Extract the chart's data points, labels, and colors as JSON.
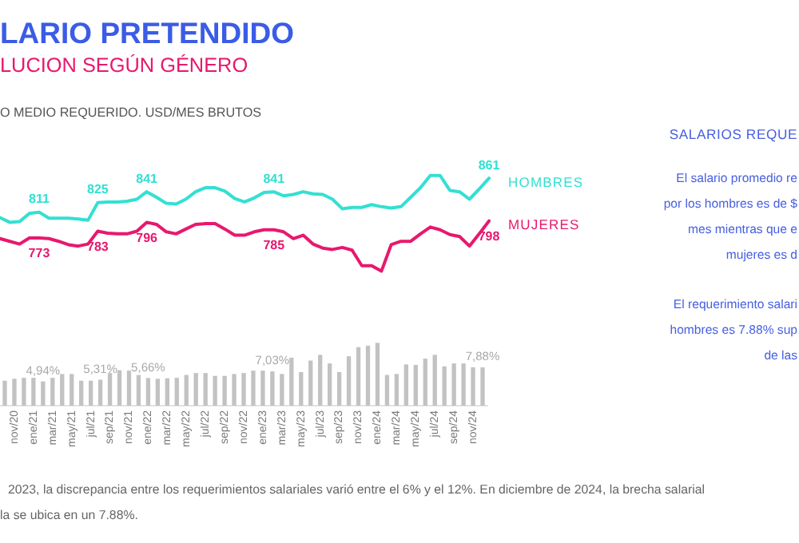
{
  "chart_data": [
    {
      "type": "line",
      "title": "LARIO PRETENDIDO",
      "subtitle": "LUCION SEGÚN GÉNERO",
      "ylabel": "O MEDIO REQUERIDO. USD/MES BRUTOS",
      "categories": [
        null,
        null,
        null,
        null,
        null,
        null,
        null,
        null,
        null,
        null,
        null,
        null,
        null,
        null,
        null,
        null,
        null,
        null,
        null,
        null,
        null,
        null,
        null,
        null,
        null,
        null,
        null,
        null,
        null,
        null,
        null,
        null,
        null,
        null,
        null,
        null,
        null,
        null,
        null,
        null,
        null,
        null,
        null,
        null,
        null,
        null,
        null,
        null,
        null,
        null,
        null
      ],
      "series": [
        {
          "name": "HOMBRES",
          "color": "#33e0d2",
          "values": [
            803,
            796,
            797,
            809,
            811,
            802,
            802,
            802,
            801,
            799,
            825,
            826,
            826,
            827,
            830,
            841,
            833,
            824,
            823,
            830,
            841,
            847,
            847,
            842,
            831,
            826,
            832,
            840,
            841,
            835,
            837,
            841,
            838,
            837,
            830,
            816,
            818,
            818,
            822,
            819,
            817,
            819,
            833,
            847,
            865,
            865,
            843,
            841,
            830,
            845,
            861
          ],
          "value_labels": [
            null,
            null,
            null,
            null,
            "811",
            null,
            null,
            null,
            null,
            null,
            "825",
            null,
            null,
            null,
            null,
            "841",
            null,
            null,
            null,
            null,
            null,
            null,
            null,
            null,
            null,
            null,
            null,
            null,
            "841",
            null,
            null,
            null,
            null,
            null,
            null,
            null,
            null,
            null,
            null,
            null,
            null,
            null,
            null,
            null,
            null,
            null,
            null,
            null,
            null,
            null,
            "861"
          ]
        },
        {
          "name": "MUJERES",
          "color": "#e8186e",
          "values": [
            772,
            768,
            764,
            773,
            773,
            772,
            768,
            763,
            761,
            764,
            783,
            780,
            779,
            779,
            783,
            796,
            793,
            782,
            779,
            786,
            793,
            794,
            794,
            786,
            777,
            777,
            782,
            785,
            785,
            782,
            772,
            777,
            764,
            758,
            756,
            759,
            755,
            732,
            732,
            724,
            763,
            768,
            768,
            779,
            789,
            785,
            778,
            775,
            761,
            779,
            798
          ],
          "value_labels": [
            null,
            null,
            null,
            null,
            "773",
            null,
            null,
            null,
            null,
            null,
            "783",
            null,
            null,
            null,
            null,
            "796",
            null,
            null,
            null,
            null,
            null,
            null,
            null,
            null,
            null,
            null,
            null,
            null,
            "785",
            null,
            null,
            null,
            null,
            null,
            null,
            null,
            null,
            null,
            null,
            null,
            null,
            null,
            null,
            null,
            null,
            null,
            null,
            null,
            null,
            null,
            "798"
          ]
        }
      ],
      "tick_labels": false
    },
    {
      "type": "bar",
      "categories": [
        null,
        "nov/20",
        null,
        "ene/21",
        null,
        "mar/21",
        null,
        "may/21",
        null,
        "jul/21",
        null,
        "sep/21",
        null,
        "nov/21",
        null,
        "ene/22",
        null,
        "mar/22",
        null,
        "may/22",
        null,
        "jul/22",
        null,
        "sep/22",
        null,
        "nov/22",
        null,
        "ene/23",
        null,
        "mar/23",
        null,
        "may/23",
        null,
        "jul/23",
        null,
        "sep/23",
        null,
        "nov/23",
        null,
        "ene/24",
        null,
        "mar/24",
        null,
        "may/24",
        null,
        "jul/24",
        null,
        "sep/24",
        null,
        "nov/24",
        null
      ],
      "values": [
        5.1,
        5.5,
        5.7,
        5.7,
        4.94,
        5.7,
        6.5,
        6.5,
        5.1,
        5.1,
        5.31,
        6.7,
        7.3,
        7.2,
        6.3,
        5.66,
        5.5,
        5.6,
        5.7,
        6.3,
        6.7,
        6.7,
        6.1,
        6.1,
        6.5,
        6.7,
        7.2,
        7.2,
        7.03,
        6.5,
        9.9,
        6.9,
        9.3,
        10.5,
        8.7,
        6.9,
        10.2,
        12.1,
        12.4,
        13.0,
        6.3,
        6.5,
        8.5,
        8.4,
        9.7,
        10.5,
        8.1,
        8.7,
        8.7,
        7.9,
        7.88
      ],
      "value_labels": [
        null,
        null,
        null,
        null,
        "4,94%",
        null,
        null,
        null,
        null,
        null,
        "5,31%",
        null,
        null,
        null,
        null,
        "5,66%",
        null,
        null,
        null,
        null,
        null,
        null,
        null,
        null,
        null,
        null,
        null,
        null,
        "7,03%",
        null,
        null,
        null,
        null,
        null,
        null,
        null,
        null,
        null,
        null,
        null,
        null,
        null,
        null,
        null,
        null,
        null,
        null,
        null,
        null,
        null,
        "7,88%"
      ],
      "color": "#c2c2c2",
      "tick_labels": "x",
      "annotations": [
        "2023, la discrepancia entre los requerimientos salariales varió entre el 6% y el 12%. En diciembre de 2024, la brecha salarial",
        "la se ubica en un 7.88%."
      ]
    },
    {
      "type": "other",
      "title": "SALARIOS REQUE",
      "annotations": [
        "El salario promedio re",
        "por los hombres es de $",
        "mes mientras que e",
        "mujeres es d",
        "El requerimiento salari",
        "hombres es 7.88% sup",
        "de las"
      ]
    }
  ]
}
